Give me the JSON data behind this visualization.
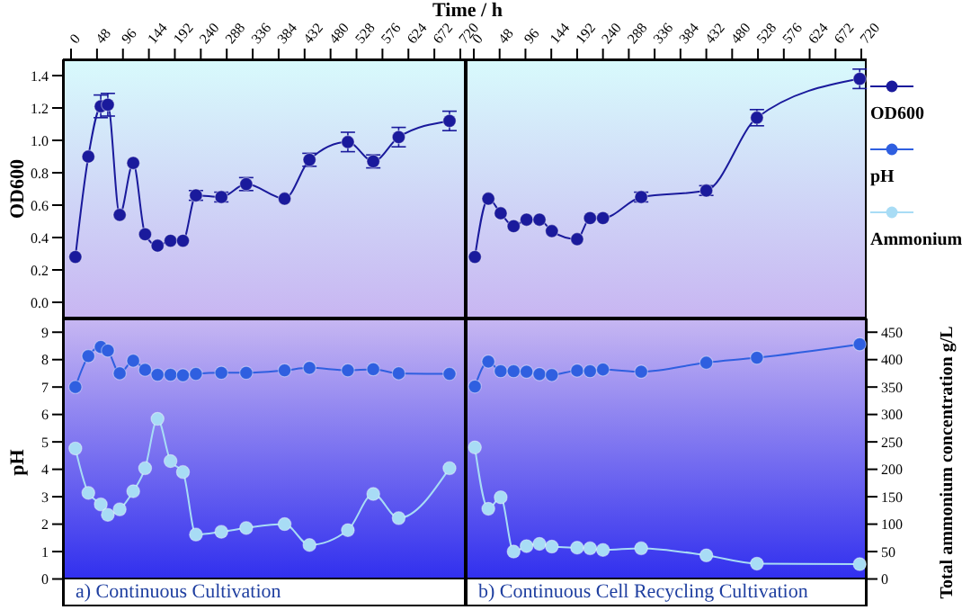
{
  "chart_data": [
    {
      "type": "line",
      "xlabel": "Time / h",
      "ylabel": "OD600",
      "x": [
        8,
        32,
        55,
        68,
        90,
        115,
        137,
        160,
        184,
        207,
        231,
        278,
        324,
        395,
        441,
        512,
        559,
        606,
        700
      ],
      "xlim": [
        -15,
        730
      ],
      "xticks": [
        0,
        48,
        96,
        144,
        192,
        240,
        288,
        336,
        384,
        432,
        480,
        528,
        576,
        624,
        672,
        720
      ],
      "ylim": [
        -0.1,
        1.5
      ],
      "yticks": [
        {
          "value": 0,
          "label": "0.0"
        },
        {
          "value": 0.2,
          "label": "0.2"
        },
        {
          "value": 0.4,
          "label": "0.4"
        },
        {
          "value": 0.6,
          "label": "0.6"
        },
        {
          "value": 0.8,
          "label": "0.8"
        },
        {
          "value": 1,
          "label": "1.0"
        },
        {
          "value": 1.2,
          "label": "1.2"
        },
        {
          "value": 1.4,
          "label": "1.4"
        }
      ],
      "marker": "circle",
      "legend": "right",
      "series": [
        {
          "name": "OD600",
          "color": "#1a1a9c",
          "values": [
            0.28,
            0.9,
            1.21,
            1.22,
            0.54,
            0.86,
            0.42,
            0.35,
            0.38,
            0.38,
            0.66,
            0.65,
            0.73,
            0.64,
            0.88,
            0.99,
            0.87,
            1.02,
            1.12
          ],
          "errors": [
            null,
            null,
            0.07,
            0.07,
            null,
            null,
            null,
            null,
            null,
            null,
            0.03,
            0.03,
            0.04,
            null,
            0.04,
            0.06,
            0.04,
            0.06,
            0.06
          ]
        }
      ]
    },
    {
      "type": "line",
      "x": [
        2,
        27,
        50,
        74,
        98,
        122,
        145,
        192,
        216,
        240,
        311,
        432,
        526,
        717
      ],
      "xlim": [
        -15,
        730
      ],
      "xticks": [
        0,
        48,
        96,
        144,
        192,
        240,
        288,
        336,
        384,
        432,
        480,
        528,
        576,
        624,
        672,
        720
      ],
      "ylim": [
        -0.1,
        1.5
      ],
      "tick_labels": "x",
      "marker": "circle",
      "legend": "right",
      "series": [
        {
          "name": "OD600",
          "color": "#1a1a9c",
          "values": [
            0.28,
            0.64,
            0.55,
            0.47,
            0.51,
            0.51,
            0.44,
            0.39,
            0.52,
            0.52,
            0.65,
            0.69,
            1.14,
            1.38
          ],
          "errors": [
            null,
            null,
            null,
            null,
            null,
            null,
            null,
            null,
            null,
            null,
            0.03,
            0.03,
            0.05,
            0.06
          ]
        }
      ]
    },
    {
      "type": "line",
      "ylabel": "pH",
      "x": [
        8,
        32,
        55,
        68,
        90,
        115,
        137,
        160,
        184,
        207,
        231,
        278,
        324,
        395,
        441,
        512,
        559,
        606,
        700
      ],
      "xlim": [
        -15,
        730
      ],
      "ylim": [
        -1,
        9.5
      ],
      "yticks": [
        0,
        1,
        2,
        3,
        4,
        5,
        6,
        7,
        8,
        9
      ],
      "y2lim": [
        -50,
        475
      ],
      "tick_labels": "y",
      "marker": "circle",
      "legend": "right",
      "annotations": [
        "a) Continuous Cultivation"
      ],
      "series": [
        {
          "name": "pH",
          "color": "#2f5fe0",
          "values": [
            7.0,
            8.13,
            8.46,
            8.33,
            7.5,
            7.96,
            7.63,
            7.45,
            7.45,
            7.43,
            7.48,
            7.52,
            7.52,
            7.61,
            7.7,
            7.61,
            7.65,
            7.5,
            7.48
          ]
        },
        {
          "name": "Ammonium",
          "color": "#a8dcf5",
          "axis": "y2",
          "values": [
            238,
            157,
            136,
            117,
            127,
            160,
            202,
            292,
            215,
            195,
            81,
            86,
            93,
            100,
            62,
            89,
            155,
            111,
            202
          ]
        }
      ]
    },
    {
      "type": "line",
      "y2label": "Total ammonium concentration g/L",
      "x": [
        2,
        27,
        50,
        74,
        98,
        122,
        145,
        192,
        216,
        240,
        311,
        432,
        526,
        717
      ],
      "xlim": [
        -15,
        730
      ],
      "ylim": [
        -1,
        9.5
      ],
      "y2lim": [
        -50,
        475
      ],
      "y2ticks": [
        0,
        50,
        100,
        150,
        200,
        250,
        300,
        350,
        400,
        450
      ],
      "tick_labels": "y2",
      "marker": "circle",
      "legend": "right",
      "annotations": [
        "b) Continuous Cell Recycling Cultivation"
      ],
      "series": [
        {
          "name": "pH",
          "color": "#2f5fe0",
          "values": [
            7.02,
            7.93,
            7.58,
            7.58,
            7.56,
            7.47,
            7.44,
            7.6,
            7.58,
            7.64,
            7.56,
            7.89,
            8.07,
            8.56
          ]
        },
        {
          "name": "Ammonium",
          "color": "#a8dcf5",
          "axis": "y2",
          "values": [
            240,
            128,
            149,
            50,
            60,
            64,
            59,
            57,
            56,
            53,
            56,
            43,
            28,
            27
          ]
        }
      ]
    }
  ]
}
